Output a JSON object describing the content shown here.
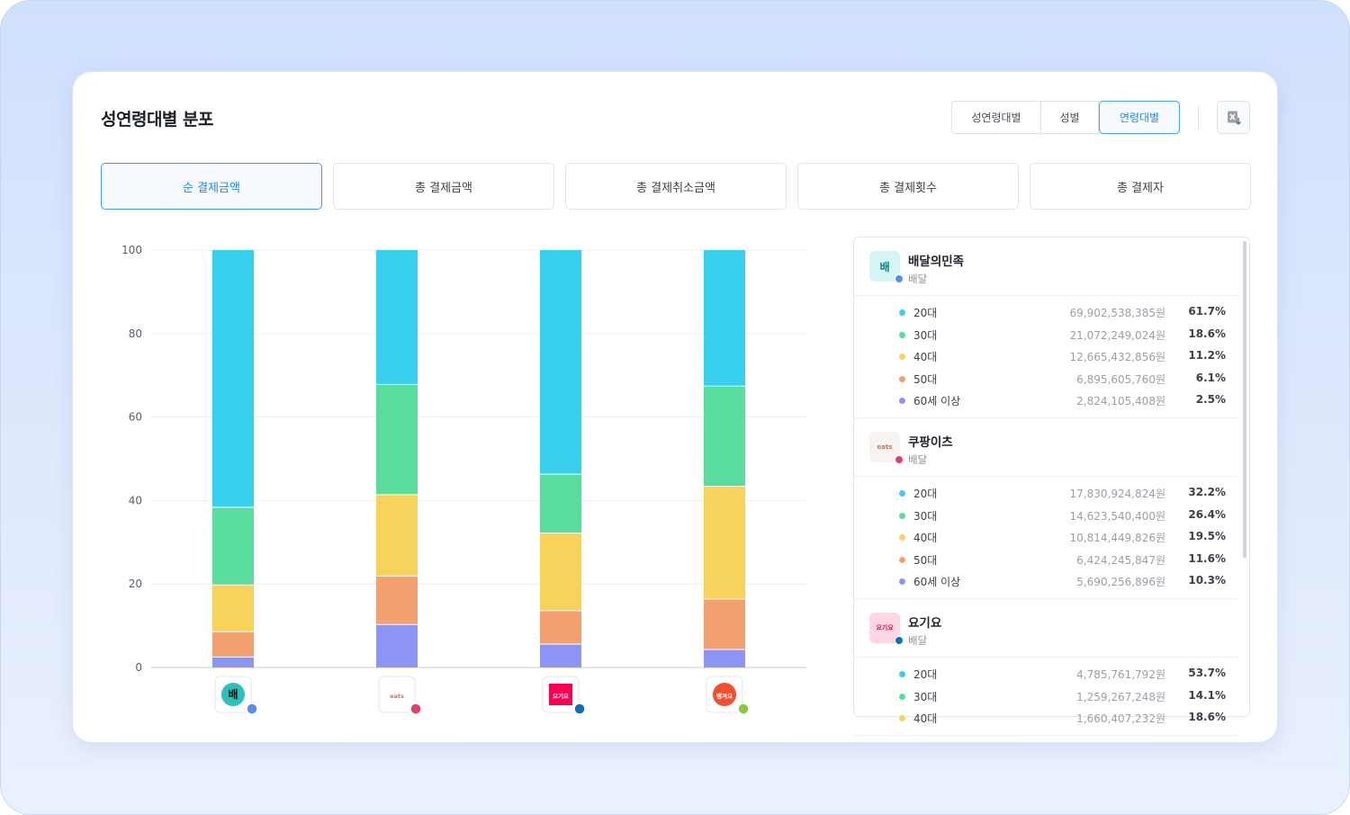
{
  "card_title": "성연령대별 분포",
  "view_toggle": [
    {
      "label": "성연령대별",
      "active": false
    },
    {
      "label": "성별",
      "active": false
    },
    {
      "label": "연령대별",
      "active": true
    }
  ],
  "export_icon": "excel-download-icon",
  "metric_tabs": [
    {
      "label": "순 결제금액",
      "active": true
    },
    {
      "label": "총 결제금액",
      "active": false
    },
    {
      "label": "총 결제취소금액",
      "active": false
    },
    {
      "label": "총 결제횟수",
      "active": false
    },
    {
      "label": "총 결제자",
      "active": false
    }
  ],
  "colors": {
    "20대": "#38d0ee",
    "30대": "#5adc9e",
    "40대": "#f8d35b",
    "50대": "#f5a16f",
    "60세 이상": "#8c94f5"
  },
  "chart_data": {
    "type": "bar",
    "stacked": true,
    "categories": [
      "배달의민족",
      "쿠팡이츠",
      "요기요",
      "땡겨요"
    ],
    "ylim": [
      0,
      100
    ],
    "yticks": [
      "0",
      "20",
      "40",
      "60",
      "80",
      "100"
    ],
    "grid": true,
    "series": [
      {
        "name": "20대",
        "values": [
          61.7,
          32.2,
          53.7,
          32.6
        ]
      },
      {
        "name": "30대",
        "values": [
          18.6,
          26.4,
          14.1,
          24.0
        ]
      },
      {
        "name": "40대",
        "values": [
          11.2,
          19.5,
          18.6,
          27.0
        ]
      },
      {
        "name": "50대",
        "values": [
          6.1,
          11.6,
          8.0,
          12.1
        ]
      },
      {
        "name": "60세 이상",
        "values": [
          2.5,
          10.3,
          5.6,
          4.3
        ]
      }
    ],
    "axis_icons": [
      {
        "app": "배달의민족",
        "logo_text": "배",
        "bg": "#2ac1bc",
        "fg": "#111111",
        "dot": "#5b8def"
      },
      {
        "app": "쿠팡이츠",
        "logo_text": "eats",
        "bg": "#ffffff",
        "fg": "#c2795f",
        "dot": "#e0406a"
      },
      {
        "app": "요기요",
        "logo_text": "요기요",
        "bg": "#fa0050",
        "fg": "#ffffff",
        "dot": "#1170b3"
      },
      {
        "app": "땡겨요",
        "logo_text": "땡겨요",
        "bg": "#f0502e",
        "fg": "#ffffff",
        "dot": "#8dc63f"
      }
    ]
  },
  "legend_groups": [
    {
      "name": "배달의민족",
      "category": "배달",
      "logo_text": "배",
      "logo_bg": "#d6f6f5",
      "logo_fg": "#0c7c78",
      "dot": "#5b8def",
      "rows": [
        {
          "age": "20대",
          "amount": "69,902,538,385원",
          "pct": "61.7%"
        },
        {
          "age": "30대",
          "amount": "21,072,249,024원",
          "pct": "18.6%"
        },
        {
          "age": "40대",
          "amount": "12,665,432,856원",
          "pct": "11.2%"
        },
        {
          "age": "50대",
          "amount": "6,895,605,760원",
          "pct": "6.1%"
        },
        {
          "age": "60세 이상",
          "amount": "2,824,105,408원",
          "pct": "2.5%"
        }
      ]
    },
    {
      "name": "쿠팡이츠",
      "category": "배달",
      "logo_text": "eats",
      "logo_bg": "#f6f3f1",
      "logo_fg": "#c2795f",
      "dot": "#e0406a",
      "rows": [
        {
          "age": "20대",
          "amount": "17,830,924,824원",
          "pct": "32.2%"
        },
        {
          "age": "30대",
          "amount": "14,623,540,400원",
          "pct": "26.4%"
        },
        {
          "age": "40대",
          "amount": "10,814,449,826원",
          "pct": "19.5%"
        },
        {
          "age": "50대",
          "amount": "6,424,245,847원",
          "pct": "11.6%"
        },
        {
          "age": "60세 이상",
          "amount": "5,690,256,896원",
          "pct": "10.3%"
        }
      ]
    },
    {
      "name": "요기요",
      "category": "배달",
      "logo_text": "요기요",
      "logo_bg": "#ffd7e2",
      "logo_fg": "#fa0050",
      "dot": "#1170b3",
      "rows": [
        {
          "age": "20대",
          "amount": "4,785,761,792원",
          "pct": "53.7%"
        },
        {
          "age": "30대",
          "amount": "1,259,267,248원",
          "pct": "14.1%"
        },
        {
          "age": "40대",
          "amount": "1,660,407,232원",
          "pct": "18.6%"
        }
      ]
    }
  ]
}
